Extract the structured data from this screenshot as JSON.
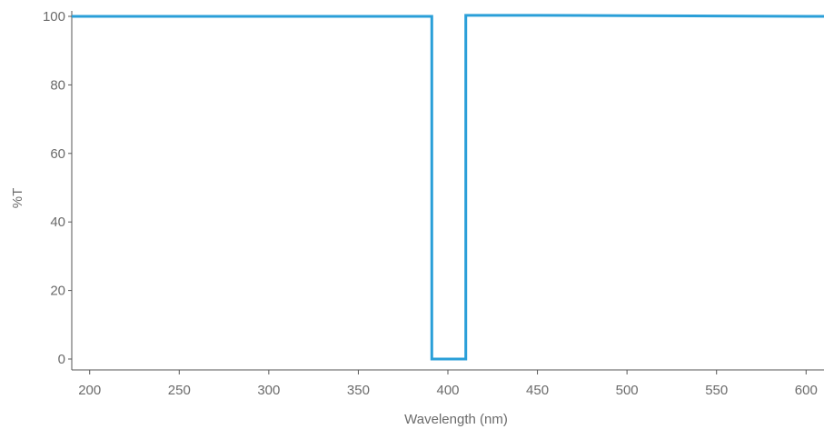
{
  "chart_data": {
    "type": "line",
    "xlabel": "Wavelength (nm)",
    "ylabel": "%T",
    "xlim": [
      190,
      610
    ],
    "ylim": [
      0,
      100
    ],
    "x_ticks": [
      200,
      250,
      300,
      350,
      400,
      450,
      500,
      550,
      600
    ],
    "y_ticks": [
      0,
      20,
      40,
      60,
      80,
      100
    ],
    "grid": false,
    "line_color": "#2a9fd8",
    "series": [
      {
        "x": [
          190,
          391,
          391,
          410,
          410,
          450,
          500,
          550,
          610
        ],
        "y": [
          100,
          100,
          0,
          0,
          100.3,
          100.3,
          100.2,
          100.1,
          100
        ]
      }
    ]
  }
}
